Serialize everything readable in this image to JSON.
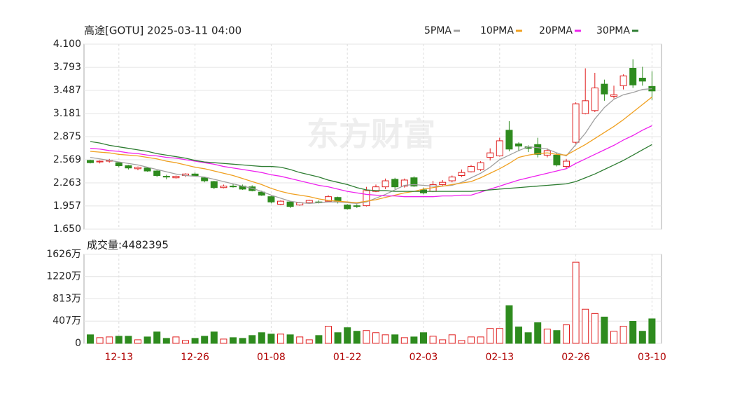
{
  "chart_data": {
    "type": "candlestick",
    "title": "高途[GOTU] 2025-03-11 04:00",
    "watermark": "东方财富",
    "categories": [
      null,
      null,
      null,
      "12-13",
      null,
      null,
      null,
      null,
      null,
      null,
      null,
      "12-26",
      null,
      null,
      null,
      null,
      null,
      null,
      null,
      "01-08",
      null,
      null,
      null,
      null,
      null,
      null,
      null,
      "01-22",
      null,
      null,
      null,
      null,
      null,
      null,
      null,
      "02-03",
      null,
      null,
      null,
      null,
      null,
      null,
      null,
      "02-13",
      null,
      null,
      null,
      null,
      null,
      null,
      null,
      "02-26",
      null,
      null,
      null,
      null,
      null,
      null,
      null,
      "03-10"
    ],
    "ohlc": [
      [
        2.56,
        2.57,
        2.52,
        2.53
      ],
      [
        2.54,
        2.56,
        2.52,
        2.55
      ],
      [
        2.55,
        2.58,
        2.53,
        2.56
      ],
      [
        2.53,
        2.54,
        2.47,
        2.49
      ],
      [
        2.49,
        2.5,
        2.44,
        2.46
      ],
      [
        2.45,
        2.48,
        2.43,
        2.47
      ],
      [
        2.46,
        2.47,
        2.41,
        2.42
      ],
      [
        2.42,
        2.43,
        2.34,
        2.36
      ],
      [
        2.35,
        2.37,
        2.31,
        2.34
      ],
      [
        2.33,
        2.36,
        2.32,
        2.35
      ],
      [
        2.36,
        2.39,
        2.34,
        2.38
      ],
      [
        2.38,
        2.4,
        2.35,
        2.36
      ],
      [
        2.33,
        2.34,
        2.27,
        2.29
      ],
      [
        2.28,
        2.29,
        2.18,
        2.2
      ],
      [
        2.2,
        2.24,
        2.19,
        2.22
      ],
      [
        2.22,
        2.25,
        2.2,
        2.21
      ],
      [
        2.22,
        2.24,
        2.17,
        2.18
      ],
      [
        2.21,
        2.23,
        2.15,
        2.16
      ],
      [
        2.14,
        2.16,
        2.09,
        2.1
      ],
      [
        2.08,
        2.09,
        1.99,
        2.01
      ],
      [
        1.98,
        2.03,
        1.97,
        2.02
      ],
      [
        2.01,
        2.02,
        1.93,
        1.95
      ],
      [
        1.97,
        2.01,
        1.96,
        2.0
      ],
      [
        2.0,
        2.04,
        1.99,
        2.03
      ],
      [
        2.01,
        2.03,
        1.99,
        2.0
      ],
      [
        2.02,
        2.1,
        2.01,
        2.08
      ],
      [
        2.07,
        2.08,
        1.99,
        2.01
      ],
      [
        1.97,
        1.98,
        1.91,
        1.92
      ],
      [
        1.96,
        1.98,
        1.93,
        1.95
      ],
      [
        1.96,
        2.21,
        1.95,
        2.16
      ],
      [
        2.15,
        2.24,
        2.14,
        2.21
      ],
      [
        2.21,
        2.32,
        2.18,
        2.29
      ],
      [
        2.31,
        2.33,
        2.18,
        2.21
      ],
      [
        2.22,
        2.32,
        2.2,
        2.3
      ],
      [
        2.33,
        2.35,
        2.21,
        2.22
      ],
      [
        2.17,
        2.2,
        2.11,
        2.13
      ],
      [
        2.15,
        2.29,
        2.14,
        2.24
      ],
      [
        2.24,
        2.3,
        2.22,
        2.27
      ],
      [
        2.29,
        2.36,
        2.27,
        2.34
      ],
      [
        2.36,
        2.44,
        2.34,
        2.4
      ],
      [
        2.41,
        2.5,
        2.4,
        2.48
      ],
      [
        2.44,
        2.55,
        2.42,
        2.53
      ],
      [
        2.6,
        2.72,
        2.56,
        2.66
      ],
      [
        2.62,
        2.86,
        2.61,
        2.82
      ],
      [
        2.96,
        3.08,
        2.68,
        2.71
      ],
      [
        2.78,
        2.8,
        2.68,
        2.75
      ],
      [
        2.74,
        2.76,
        2.67,
        2.72
      ],
      [
        2.77,
        2.86,
        2.6,
        2.64
      ],
      [
        2.63,
        2.72,
        2.6,
        2.69
      ],
      [
        2.63,
        2.66,
        2.48,
        2.5
      ],
      [
        2.48,
        2.58,
        2.45,
        2.55
      ],
      [
        2.8,
        3.33,
        2.78,
        3.31
      ],
      [
        3.18,
        3.78,
        3.17,
        3.35
      ],
      [
        3.22,
        3.72,
        3.2,
        3.52
      ],
      [
        3.57,
        3.63,
        3.35,
        3.44
      ],
      [
        3.41,
        3.55,
        3.38,
        3.43
      ],
      [
        3.55,
        3.7,
        3.5,
        3.68
      ],
      [
        3.78,
        3.9,
        3.52,
        3.56
      ],
      [
        3.65,
        3.8,
        3.55,
        3.61
      ],
      [
        3.54,
        3.74,
        3.36,
        3.48
      ]
    ],
    "up_color": "#e02020",
    "down_color": "#2e8b1e",
    "series": [
      {
        "name": "5PMA",
        "color": "#a0a0a0",
        "values": [
          2.6,
          2.58,
          2.56,
          2.54,
          2.52,
          2.5,
          2.47,
          2.44,
          2.41,
          2.38,
          2.36,
          2.35,
          2.34,
          2.31,
          2.28,
          2.25,
          2.22,
          2.19,
          2.15,
          2.1,
          2.06,
          2.02,
          2.0,
          1.99,
          2.0,
          2.01,
          2.01,
          2.0,
          1.99,
          2.01,
          2.06,
          2.11,
          2.17,
          2.23,
          2.24,
          2.23,
          2.22,
          2.22,
          2.23,
          2.27,
          2.33,
          2.39,
          2.47,
          2.57,
          2.63,
          2.69,
          2.74,
          2.73,
          2.71,
          2.66,
          2.62,
          2.77,
          2.92,
          3.11,
          3.26,
          3.37,
          3.43,
          3.46,
          3.5,
          3.51
        ]
      },
      {
        "name": "10PMA",
        "color": "#f0a020",
        "values": [
          2.68,
          2.67,
          2.66,
          2.64,
          2.63,
          2.62,
          2.6,
          2.58,
          2.55,
          2.53,
          2.5,
          2.47,
          2.45,
          2.42,
          2.39,
          2.36,
          2.32,
          2.28,
          2.24,
          2.19,
          2.15,
          2.12,
          2.1,
          2.08,
          2.05,
          2.03,
          2.02,
          2.01,
          2.0,
          2.02,
          2.04,
          2.07,
          2.1,
          2.13,
          2.15,
          2.18,
          2.2,
          2.22,
          2.24,
          2.26,
          2.28,
          2.33,
          2.39,
          2.45,
          2.52,
          2.6,
          2.63,
          2.65,
          2.66,
          2.64,
          2.63,
          2.7,
          2.77,
          2.85,
          2.93,
          3.01,
          3.1,
          3.2,
          3.3,
          3.4
        ]
      },
      {
        "name": "20PMA",
        "color": "#ee22ee",
        "values": [
          2.72,
          2.71,
          2.69,
          2.68,
          2.66,
          2.65,
          2.63,
          2.62,
          2.6,
          2.59,
          2.57,
          2.55,
          2.53,
          2.51,
          2.48,
          2.46,
          2.44,
          2.42,
          2.4,
          2.37,
          2.35,
          2.32,
          2.29,
          2.26,
          2.23,
          2.21,
          2.18,
          2.15,
          2.13,
          2.11,
          2.1,
          2.09,
          2.09,
          2.08,
          2.08,
          2.08,
          2.08,
          2.09,
          2.09,
          2.1,
          2.1,
          2.14,
          2.18,
          2.22,
          2.26,
          2.3,
          2.33,
          2.36,
          2.39,
          2.42,
          2.45,
          2.52,
          2.58,
          2.64,
          2.7,
          2.76,
          2.83,
          2.89,
          2.96,
          3.02
        ]
      },
      {
        "name": "30PMA",
        "color": "#2e7d32",
        "values": [
          2.81,
          2.79,
          2.76,
          2.74,
          2.72,
          2.7,
          2.68,
          2.65,
          2.63,
          2.61,
          2.59,
          2.56,
          2.54,
          2.53,
          2.52,
          2.51,
          2.5,
          2.49,
          2.48,
          2.48,
          2.47,
          2.44,
          2.4,
          2.37,
          2.34,
          2.3,
          2.27,
          2.24,
          2.2,
          2.17,
          2.16,
          2.16,
          2.15,
          2.15,
          2.15,
          2.15,
          2.15,
          2.15,
          2.15,
          2.15,
          2.15,
          2.16,
          2.17,
          2.18,
          2.19,
          2.2,
          2.21,
          2.22,
          2.23,
          2.24,
          2.25,
          2.28,
          2.33,
          2.38,
          2.44,
          2.5,
          2.56,
          2.63,
          2.7,
          2.77
        ]
      }
    ],
    "ylim": [
      1.65,
      4.1
    ],
    "yticks": [
      {
        "value": 1.65,
        "label": "1.650"
      },
      1.957,
      2.263,
      2.569,
      2.875,
      3.181,
      3.487,
      3.793,
      {
        "value": 4.1,
        "label": "4.100"
      }
    ],
    "volume_label": "成交量:4482395",
    "volumes": [
      1560000,
      1040000,
      1170000,
      1300000,
      1300000,
      650000,
      1170000,
      2080000,
      910000,
      1170000,
      520000,
      910000,
      1300000,
      2080000,
      780000,
      1040000,
      910000,
      1430000,
      1950000,
      1690000,
      1690000,
      1560000,
      1170000,
      650000,
      1430000,
      3120000,
      1950000,
      2860000,
      2210000,
      2340000,
      1950000,
      1560000,
      1560000,
      1040000,
      1170000,
      1950000,
      1300000,
      650000,
      1560000,
      520000,
      1170000,
      1170000,
      2730000,
      2730000,
      6890000,
      2990000,
      1950000,
      3770000,
      2600000,
      2340000,
      3380000,
      14830000,
      6240000,
      5460000,
      4810000,
      2210000,
      3120000,
      4030000,
      2210000,
      4482395
    ],
    "vlim": [
      0,
      16260000
    ],
    "vticks": [
      0,
      {
        "value": 4070000,
        "label": "407万"
      },
      {
        "value": 8130000,
        "label": "813万"
      },
      {
        "value": 12200000,
        "label": "1220万"
      },
      {
        "value": 16260000,
        "label": "1626万"
      }
    ],
    "grid": true
  }
}
